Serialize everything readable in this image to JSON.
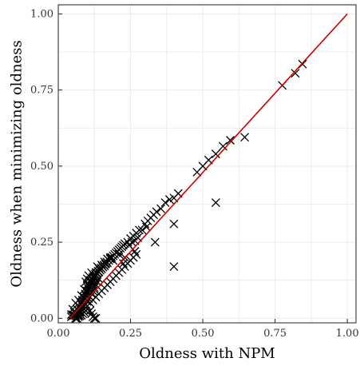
{
  "chart_data": {
    "type": "scatter",
    "title": "",
    "xlabel": "Oldness with NPM",
    "ylabel": "Oldness when minimizing oldness",
    "xlim": [
      0.0,
      1.03
    ],
    "ylim": [
      -0.015,
      1.03
    ],
    "x_ticks": [
      0.0,
      0.25,
      0.5,
      0.75,
      1.0
    ],
    "x_tick_labels": [
      "0.00",
      "0.25",
      "0.50",
      "0.75",
      "1.00"
    ],
    "y_ticks": [
      0.0,
      0.25,
      0.5,
      0.75,
      1.0
    ],
    "y_tick_labels": [
      "0.00",
      "0.25",
      "0.50",
      "0.75",
      "1.00"
    ],
    "grid": true,
    "marker": "x",
    "reference_line": {
      "from": [
        0.04,
        0.0
      ],
      "to": [
        1.0,
        1.0
      ],
      "color": "#cc0000"
    },
    "points": [
      [
        0.045,
        0.005
      ],
      [
        0.05,
        0.012
      ],
      [
        0.055,
        0.02
      ],
      [
        0.06,
        0.015
      ],
      [
        0.065,
        0.03
      ],
      [
        0.07,
        0.025
      ],
      [
        0.072,
        0.04
      ],
      [
        0.075,
        0.035
      ],
      [
        0.078,
        0.05
      ],
      [
        0.08,
        0.045
      ],
      [
        0.083,
        0.06
      ],
      [
        0.085,
        0.055
      ],
      [
        0.088,
        0.07
      ],
      [
        0.09,
        0.065
      ],
      [
        0.093,
        0.08
      ],
      [
        0.095,
        0.075
      ],
      [
        0.098,
        0.09
      ],
      [
        0.1,
        0.085
      ],
      [
        0.103,
        0.1
      ],
      [
        0.105,
        0.095
      ],
      [
        0.108,
        0.11
      ],
      [
        0.11,
        0.105
      ],
      [
        0.113,
        0.12
      ],
      [
        0.115,
        0.115
      ],
      [
        0.118,
        0.13
      ],
      [
        0.12,
        0.125
      ],
      [
        0.123,
        0.14
      ],
      [
        0.125,
        0.135
      ],
      [
        0.128,
        0.145
      ],
      [
        0.13,
        0.14
      ],
      [
        0.133,
        0.15
      ],
      [
        0.135,
        0.148
      ],
      [
        0.138,
        0.155
      ],
      [
        0.14,
        0.152
      ],
      [
        0.143,
        0.16
      ],
      [
        0.145,
        0.158
      ],
      [
        0.148,
        0.165
      ],
      [
        0.15,
        0.162
      ],
      [
        0.153,
        0.17
      ],
      [
        0.155,
        0.168
      ],
      [
        0.158,
        0.175
      ],
      [
        0.16,
        0.172
      ],
      [
        0.163,
        0.178
      ],
      [
        0.165,
        0.18
      ],
      [
        0.168,
        0.185
      ],
      [
        0.17,
        0.182
      ],
      [
        0.175,
        0.19
      ],
      [
        0.18,
        0.195
      ],
      [
        0.185,
        0.2
      ],
      [
        0.19,
        0.205
      ],
      [
        0.195,
        0.21
      ],
      [
        0.2,
        0.215
      ],
      [
        0.205,
        0.22
      ],
      [
        0.21,
        0.225
      ],
      [
        0.215,
        0.23
      ],
      [
        0.22,
        0.235
      ],
      [
        0.225,
        0.24
      ],
      [
        0.23,
        0.245
      ],
      [
        0.24,
        0.25
      ],
      [
        0.25,
        0.262
      ],
      [
        0.26,
        0.27
      ],
      [
        0.27,
        0.28
      ],
      [
        0.28,
        0.29
      ],
      [
        0.06,
        0.0
      ],
      [
        0.07,
        0.01
      ],
      [
        0.08,
        0.02
      ],
      [
        0.09,
        0.03
      ],
      [
        0.1,
        0.04
      ],
      [
        0.11,
        0.05
      ],
      [
        0.12,
        0.06
      ],
      [
        0.13,
        0.07
      ],
      [
        0.14,
        0.08
      ],
      [
        0.15,
        0.09
      ],
      [
        0.16,
        0.1
      ],
      [
        0.17,
        0.11
      ],
      [
        0.18,
        0.12
      ],
      [
        0.19,
        0.13
      ],
      [
        0.2,
        0.14
      ],
      [
        0.21,
        0.15
      ],
      [
        0.22,
        0.16
      ],
      [
        0.23,
        0.17
      ],
      [
        0.24,
        0.18
      ],
      [
        0.25,
        0.19
      ],
      [
        0.26,
        0.2
      ],
      [
        0.265,
        0.22
      ],
      [
        0.27,
        0.21
      ],
      [
        0.05,
        0.03
      ],
      [
        0.06,
        0.05
      ],
      [
        0.07,
        0.06
      ],
      [
        0.08,
        0.075
      ],
      [
        0.09,
        0.095
      ],
      [
        0.1,
        0.11
      ],
      [
        0.11,
        0.125
      ],
      [
        0.12,
        0.135
      ],
      [
        0.13,
        0.15
      ],
      [
        0.14,
        0.165
      ],
      [
        0.15,
        0.175
      ],
      [
        0.16,
        0.185
      ],
      [
        0.17,
        0.195
      ],
      [
        0.045,
        0.012
      ],
      [
        0.05,
        0.008
      ],
      [
        0.055,
        0.01
      ],
      [
        0.06,
        0.008
      ],
      [
        0.065,
        0.015
      ],
      [
        0.07,
        0.012
      ],
      [
        0.075,
        0.02
      ],
      [
        0.08,
        0.03
      ],
      [
        0.085,
        0.025
      ],
      [
        0.09,
        0.04
      ],
      [
        0.095,
        0.045
      ],
      [
        0.1,
        0.055
      ],
      [
        0.105,
        0.065
      ],
      [
        0.11,
        0.07
      ],
      [
        0.115,
        0.08
      ],
      [
        0.12,
        0.09
      ],
      [
        0.125,
        0.1
      ],
      [
        0.13,
        0.11
      ],
      [
        0.135,
        0.12
      ],
      [
        0.14,
        0.13
      ],
      [
        0.06,
        0.0
      ],
      [
        0.065,
        0.0
      ],
      [
        0.07,
        0.005
      ],
      [
        0.075,
        0.008
      ],
      [
        0.08,
        0.01
      ],
      [
        0.085,
        0.015
      ],
      [
        0.09,
        0.02
      ],
      [
        0.095,
        0.025
      ],
      [
        0.11,
        0.025
      ],
      [
        0.115,
        0.015
      ],
      [
        0.12,
        0.005
      ],
      [
        0.125,
        0.0
      ],
      [
        0.13,
        0.0
      ],
      [
        0.095,
        0.12
      ],
      [
        0.1,
        0.13
      ],
      [
        0.105,
        0.14
      ],
      [
        0.115,
        0.15
      ],
      [
        0.135,
        0.17
      ],
      [
        0.18,
        0.2
      ],
      [
        0.19,
        0.19
      ],
      [
        0.21,
        0.21
      ],
      [
        0.225,
        0.18
      ],
      [
        0.23,
        0.2
      ],
      [
        0.245,
        0.24
      ],
      [
        0.255,
        0.25
      ],
      [
        0.265,
        0.255
      ],
      [
        0.275,
        0.265
      ],
      [
        0.29,
        0.29
      ],
      [
        0.3,
        0.31
      ],
      [
        0.305,
        0.3
      ],
      [
        0.31,
        0.32
      ],
      [
        0.32,
        0.33
      ],
      [
        0.33,
        0.34
      ],
      [
        0.335,
        0.25
      ],
      [
        0.34,
        0.35
      ],
      [
        0.355,
        0.36
      ],
      [
        0.37,
        0.38
      ],
      [
        0.385,
        0.39
      ],
      [
        0.4,
        0.395
      ],
      [
        0.415,
        0.41
      ],
      [
        0.4,
        0.31
      ],
      [
        0.4,
        0.17
      ],
      [
        0.48,
        0.48
      ],
      [
        0.5,
        0.5
      ],
      [
        0.52,
        0.52
      ],
      [
        0.545,
        0.54
      ],
      [
        0.545,
        0.38
      ],
      [
        0.57,
        0.565
      ],
      [
        0.595,
        0.585
      ],
      [
        0.645,
        0.595
      ],
      [
        0.775,
        0.765
      ],
      [
        0.82,
        0.805
      ],
      [
        0.845,
        0.835
      ]
    ]
  }
}
